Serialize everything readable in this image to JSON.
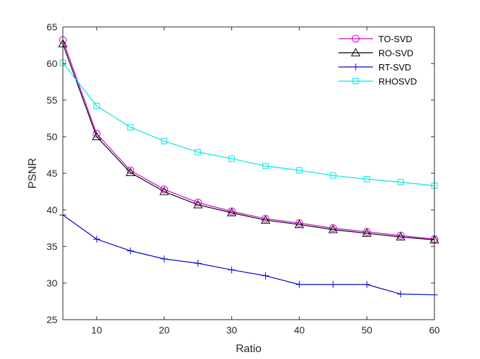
{
  "chart_data": {
    "type": "line",
    "title": "",
    "xlabel": "Ratio",
    "ylabel": "PSNR",
    "xlim": [
      5,
      60
    ],
    "ylim": [
      25,
      65
    ],
    "xticks": [
      10,
      20,
      30,
      40,
      50,
      60
    ],
    "yticks": [
      25,
      30,
      35,
      40,
      45,
      50,
      55,
      60,
      65
    ],
    "legend_position": "top-right",
    "grid": false,
    "x": [
      5,
      10,
      15,
      20,
      25,
      30,
      35,
      40,
      45,
      50,
      55,
      60
    ],
    "series": [
      {
        "name": "TO-SVD",
        "color": "#cc00cc",
        "marker": "circle",
        "values": [
          63.2,
          50.4,
          45.4,
          42.8,
          41.0,
          39.8,
          38.8,
          38.2,
          37.5,
          37.0,
          36.5,
          36.0
        ]
      },
      {
        "name": "RO-SVD",
        "color": "#000000",
        "marker": "triangle",
        "values": [
          62.7,
          50.0,
          45.1,
          42.5,
          40.7,
          39.6,
          38.6,
          38.0,
          37.3,
          36.8,
          36.3,
          35.9
        ]
      },
      {
        "name": "RT-SVD",
        "color": "#0000cc",
        "marker": "plus",
        "values": [
          39.3,
          36.0,
          34.4,
          33.3,
          32.7,
          31.8,
          31.0,
          29.8,
          29.8,
          29.8,
          28.5,
          28.4
        ]
      },
      {
        "name": "RHOSVD",
        "color": "#00e5e5",
        "marker": "square",
        "values": [
          60.1,
          54.2,
          51.3,
          49.4,
          47.9,
          47.0,
          46.0,
          45.4,
          44.7,
          44.2,
          43.8,
          43.3
        ]
      }
    ]
  }
}
